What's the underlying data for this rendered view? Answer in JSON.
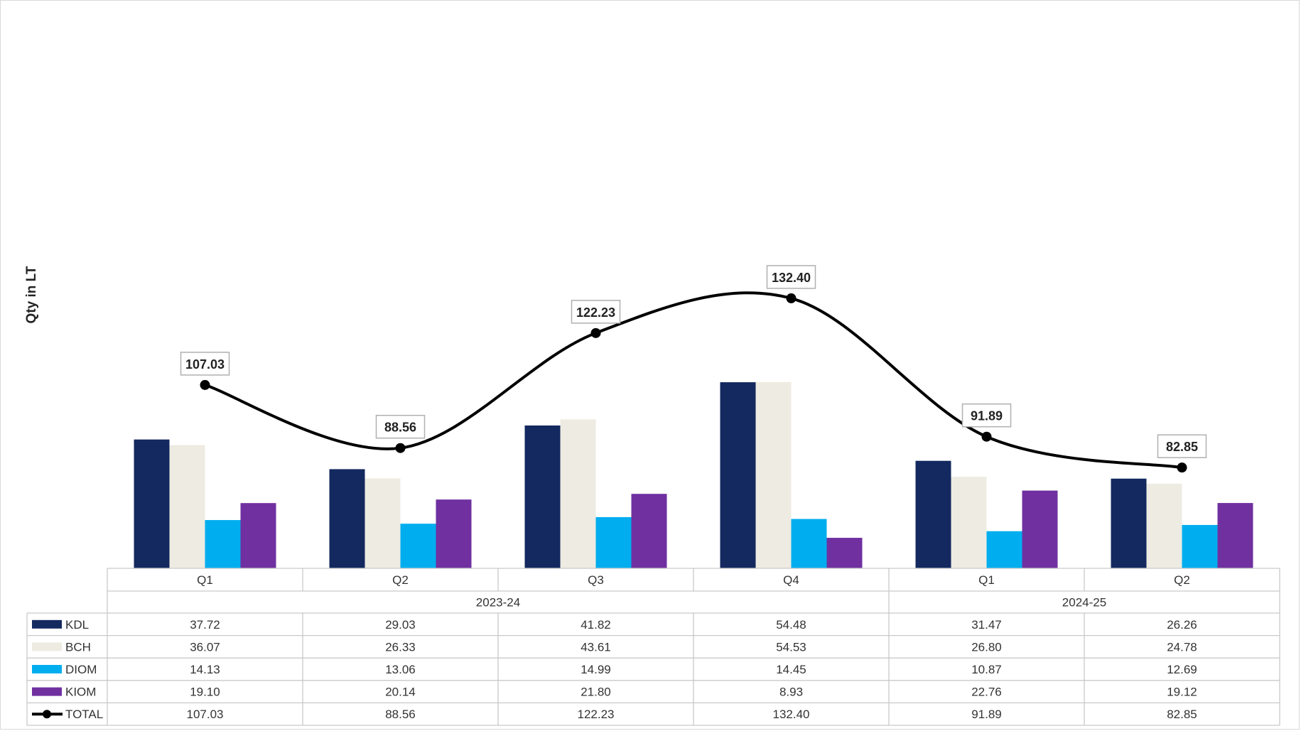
{
  "chart_data": {
    "type": "bar",
    "ylabel": "Qty in LT",
    "categories": [
      "Q1",
      "Q2",
      "Q3",
      "Q4",
      "Q1",
      "Q2"
    ],
    "groups": [
      {
        "label": "2023-24",
        "span": 4
      },
      {
        "label": "2024-25",
        "span": 2
      }
    ],
    "series": [
      {
        "name": "KDL",
        "type": "bar",
        "color": "#13295f",
        "values": [
          "37.72",
          "29.03",
          "41.82",
          "54.48",
          "31.47",
          "26.26"
        ]
      },
      {
        "name": "BCH",
        "type": "bar",
        "color": "#eeebe2",
        "values": [
          "36.07",
          "26.33",
          "43.61",
          "54.53",
          "26.80",
          "24.78"
        ]
      },
      {
        "name": "DIOM",
        "type": "bar",
        "color": "#00aeef",
        "values": [
          "14.13",
          "13.06",
          "14.99",
          "14.45",
          "10.87",
          "12.69"
        ]
      },
      {
        "name": "KIOM",
        "type": "bar",
        "color": "#7030a0",
        "values": [
          "19.10",
          "20.14",
          "21.80",
          "8.93",
          "22.76",
          "19.12"
        ]
      },
      {
        "name": "TOTAL",
        "type": "line",
        "color": "#000000",
        "values": [
          "107.03",
          "88.56",
          "122.23",
          "132.40",
          "91.89",
          "82.85"
        ]
      }
    ],
    "legend_position": "data-table",
    "gridlines": false
  }
}
